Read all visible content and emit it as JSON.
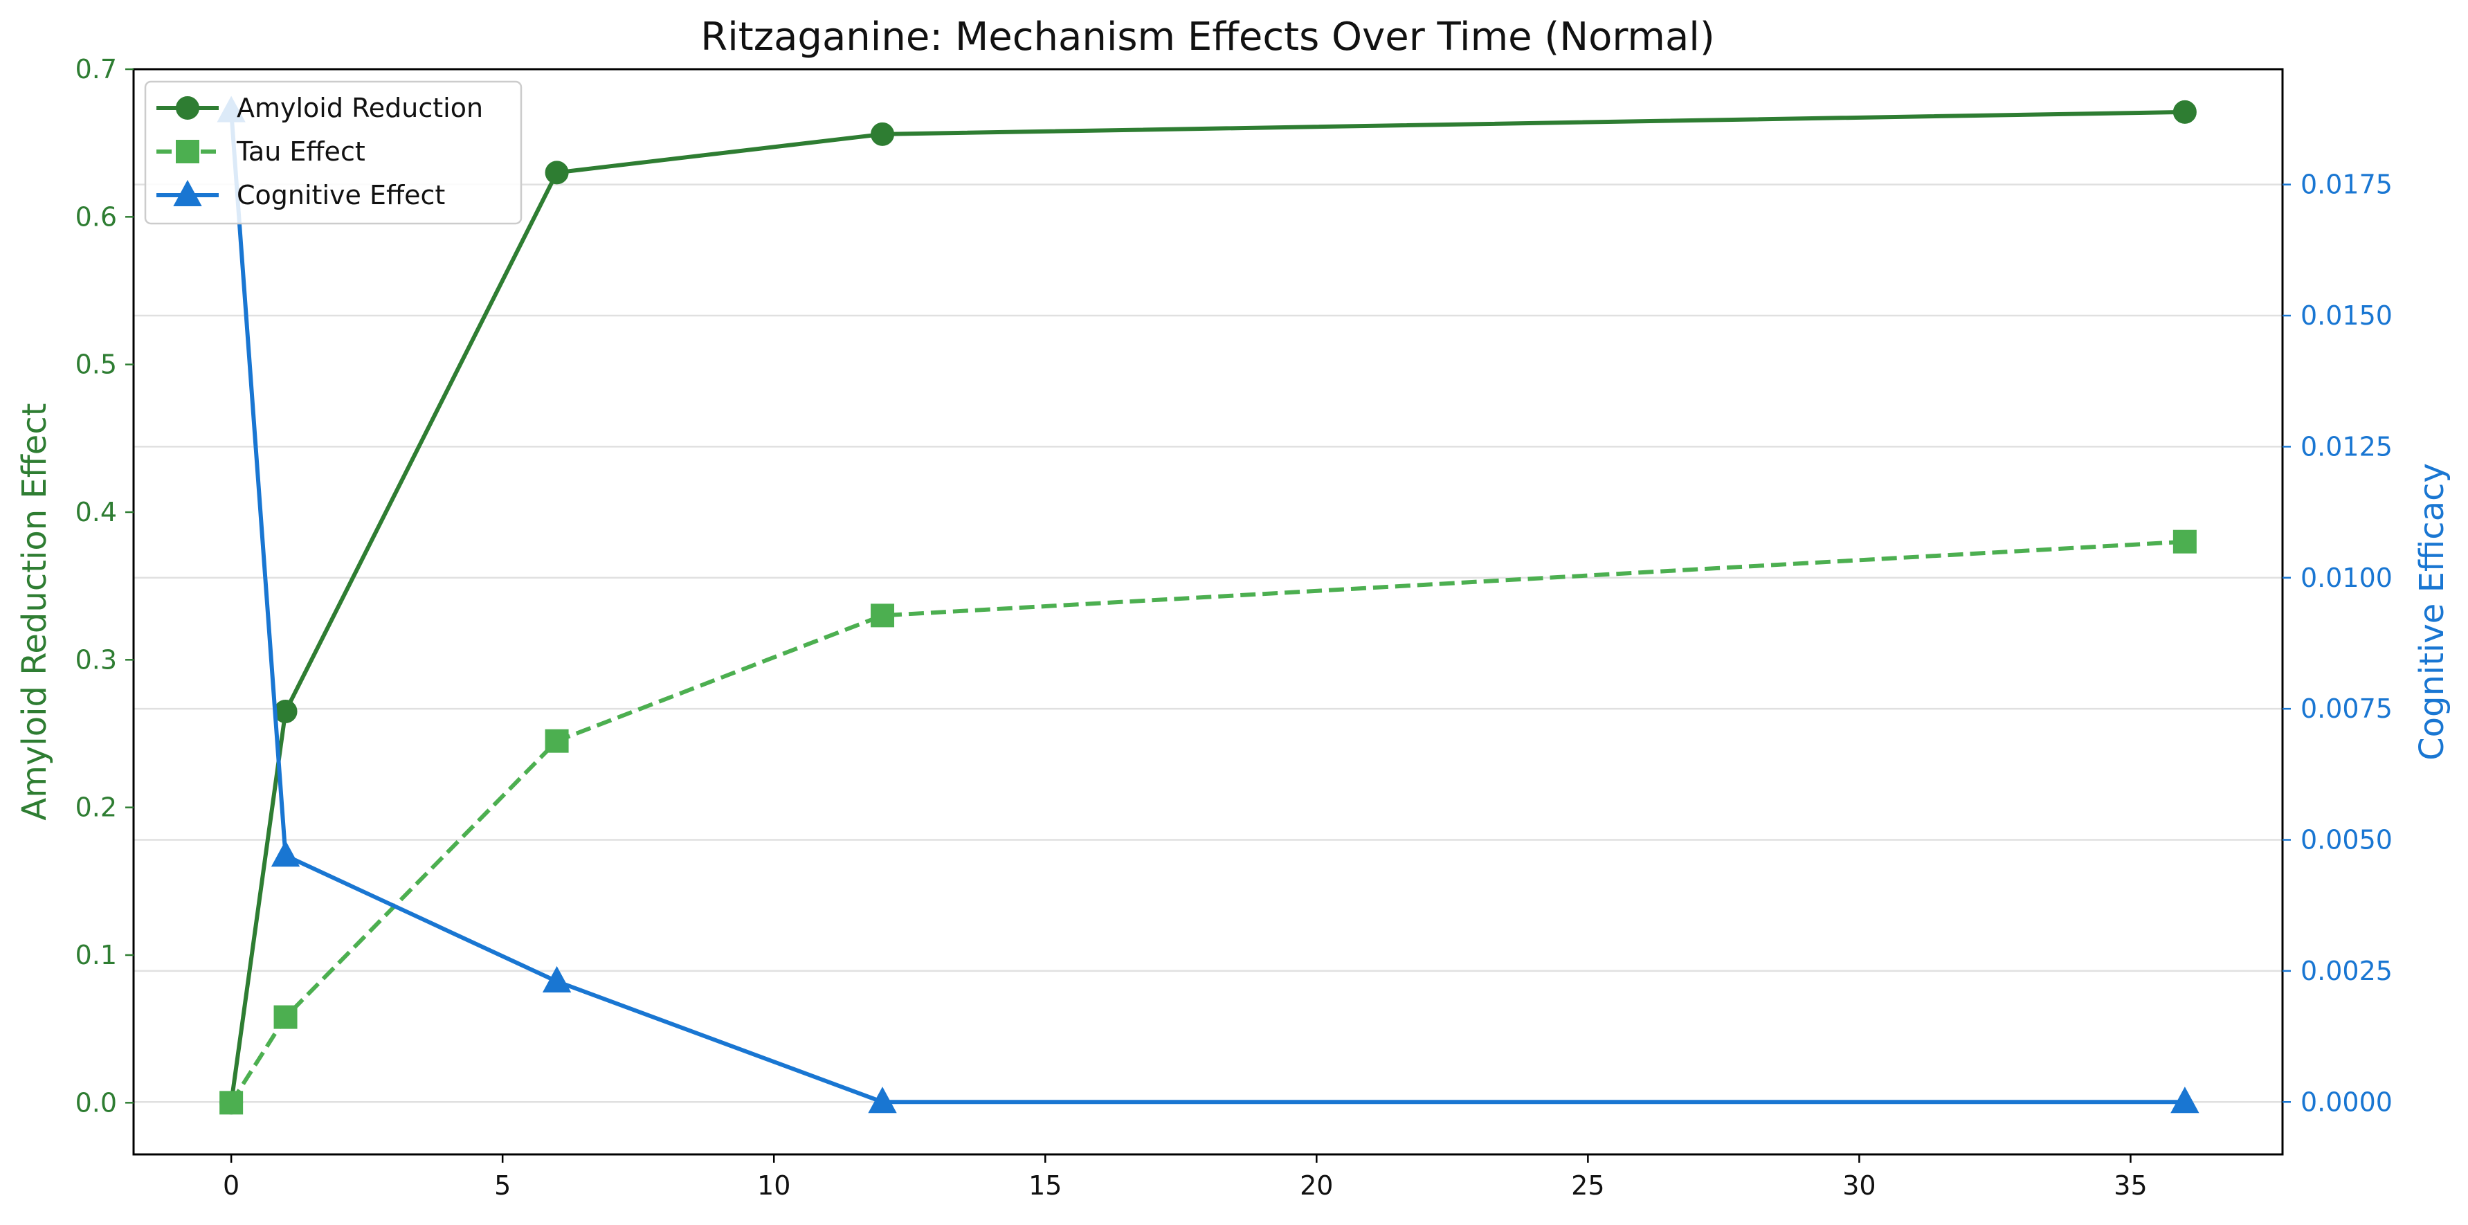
{
  "chart_data": {
    "type": "line",
    "title": "Ritzaganine: Mechanism Effects Over Time (Normal)",
    "xlabel": "",
    "ylabel_left": "Amyloid Reduction Effect",
    "ylabel_right": "Cognitive Efficacy",
    "xlim": [
      -1.8,
      37.8
    ],
    "ylim_left": [
      -0.035,
      0.7
    ],
    "ylim_right": [
      -0.001,
      0.0197
    ],
    "x_ticks": [
      0,
      5,
      10,
      15,
      20,
      25,
      30,
      35
    ],
    "y_left_ticks": [
      0.0,
      0.1,
      0.2,
      0.3,
      0.4,
      0.5,
      0.6,
      0.7
    ],
    "y_left_tick_labels": [
      "0.0",
      "0.1",
      "0.2",
      "0.3",
      "0.4",
      "0.5",
      "0.6",
      "0.7"
    ],
    "y_right_ticks": [
      0.0,
      0.0025,
      0.005,
      0.0075,
      0.01,
      0.0125,
      0.015,
      0.0175
    ],
    "y_right_tick_labels": [
      "0.0000",
      "0.0025",
      "0.0050",
      "0.0075",
      "0.0100",
      "0.0125",
      "0.0150",
      "0.0175"
    ],
    "grid": "horizontal (right axis)",
    "legend_position": "top-left",
    "x": [
      0,
      1,
      6,
      12,
      36
    ],
    "series": [
      {
        "name": "Amyloid Reduction",
        "axis": "left",
        "values": [
          0.0,
          0.265,
          0.63,
          0.656,
          0.671
        ],
        "color": "#2e7d32",
        "marker": "circle",
        "dash": "solid"
      },
      {
        "name": "Tau Effect",
        "axis": "left",
        "values": [
          0.0,
          0.058,
          0.245,
          0.33,
          0.38
        ],
        "color": "#4caf50",
        "marker": "square",
        "dash": "dashed"
      },
      {
        "name": "Cognitive Effect",
        "axis": "right",
        "values": [
          0.0189,
          0.0047,
          0.0023,
          0.0,
          0.0
        ],
        "color": "#1976d2",
        "marker": "triangle",
        "dash": "solid"
      }
    ],
    "colors": {
      "left_axis": "#2e7d32",
      "right_axis": "#1976d2",
      "grid": "#e0e0e0",
      "frame": "#000000"
    }
  }
}
